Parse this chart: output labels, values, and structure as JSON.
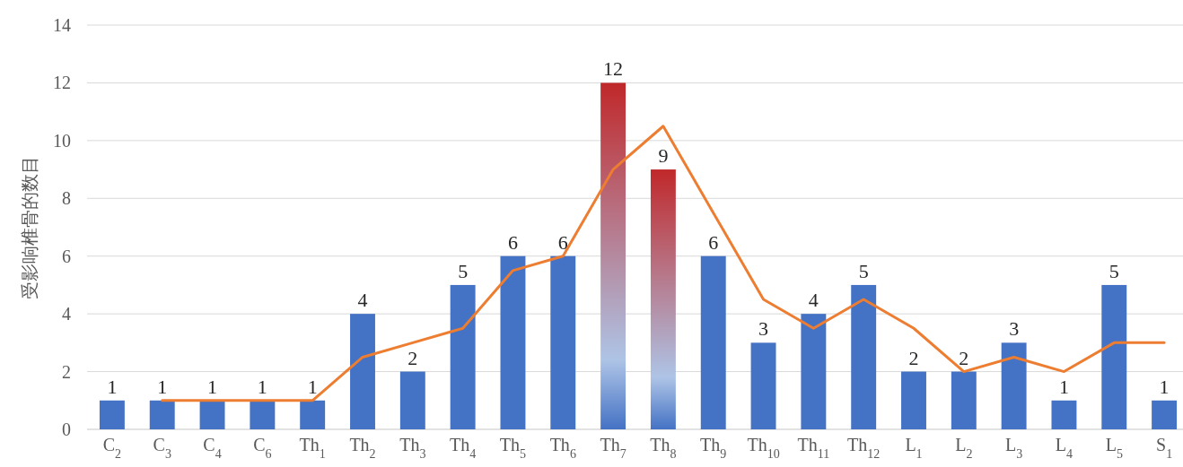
{
  "chart_data": {
    "type": "bar",
    "ylabel": "受影响椎骨的数目",
    "categories": [
      "C$_{2}$",
      "C$_{3}$",
      "C$_{4}$",
      "C$_{6}$",
      "Th$_{1}$",
      "Th$_{2}$",
      "Th$_{3}$",
      "Th$_{4}$",
      "Th$_{5}$",
      "Th$_{6}$",
      "Th$_{7}$",
      "Th$_{8}$",
      "Th$_{9}$",
      "Th$_{10}$",
      "Th$_{11}$",
      "Th$_{12}$",
      "L$_{1}$",
      "L$_{2}$",
      "L$_{3}$",
      "L$_{4}$",
      "L$_{5}$",
      "S$_{1}$"
    ],
    "series": [
      {
        "color": "#4472c4",
        "data_labels": true,
        "colors": [
          "#4472c4",
          "#4472c4",
          "#4472c4",
          "#4472c4",
          "#4472c4",
          "#4472c4",
          "#4472c4",
          "#4472c4",
          "#4472c4",
          "#4472c4",
          "#c0282a",
          "#c0282a",
          "#4472c4",
          "#4472c4",
          "#4472c4",
          "#4472c4",
          "#4472c4",
          "#4472c4",
          "#4472c4",
          "#4472c4",
          "#4472c4",
          "#4472c4"
        ],
        "values": [
          1,
          1,
          1,
          1,
          1,
          4,
          2,
          5,
          6,
          6,
          12,
          9,
          6,
          3,
          4,
          5,
          2,
          2,
          3,
          1,
          5,
          1
        ]
      },
      {
        "type": "line",
        "color": "#ed7d31",
        "values": [
          null,
          1,
          1,
          1,
          1,
          2.5,
          3,
          3.5,
          5.5,
          6,
          9,
          10.5,
          7.5,
          4.5,
          3.5,
          4.5,
          3.5,
          2,
          2.5,
          2,
          3,
          3
        ]
      }
    ],
    "ylim": [
      0,
      14
    ],
    "yticks": [
      0,
      2,
      4,
      6,
      8,
      10,
      12,
      14
    ],
    "grid": "y"
  }
}
